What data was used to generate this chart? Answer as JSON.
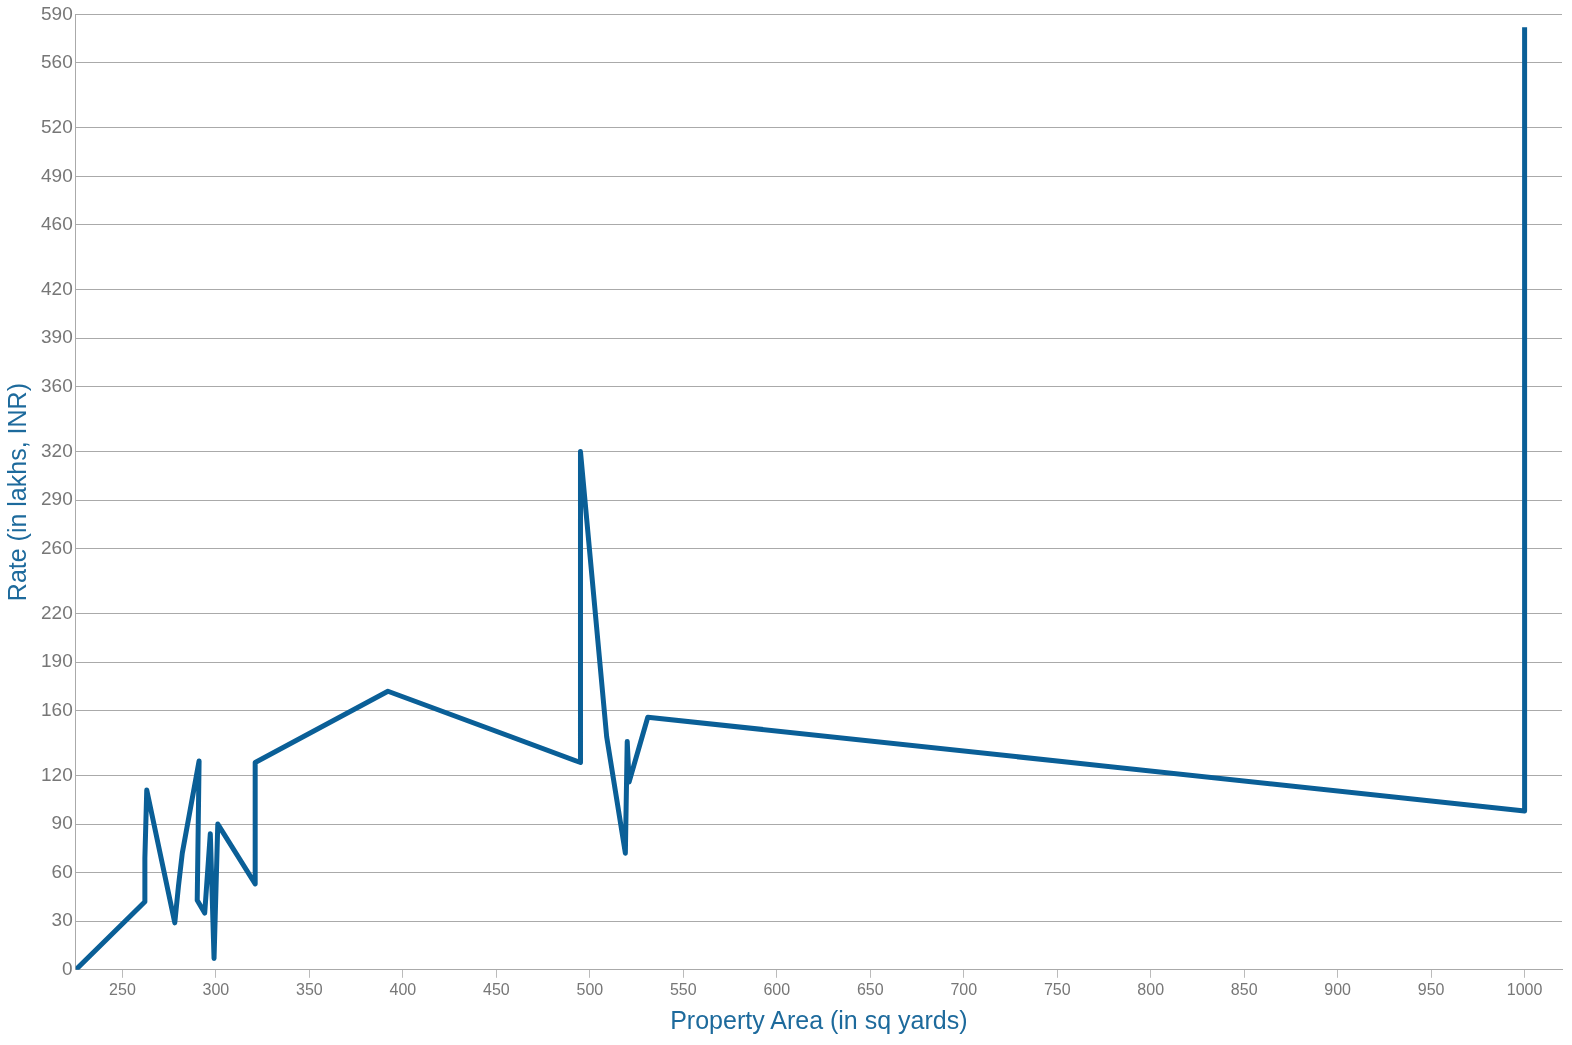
{
  "chart_data": {
    "type": "line",
    "xlabel": "Property Area (in sq yards)",
    "ylabel": "Rate (in lakhs, INR)",
    "series": [
      {
        "color": "#0a5f97",
        "x": [
          225,
          262,
          262,
          263,
          278,
          280,
          282,
          291,
          290,
          294,
          297,
          299,
          301,
          321,
          321,
          392,
          495,
          495,
          509,
          519,
          520,
          521,
          531,
          1000,
          1000
        ],
        "values": [
          0,
          42,
          69,
          111,
          29,
          52,
          72,
          129,
          43,
          35,
          84,
          7,
          90,
          53,
          128,
          172,
          128,
          320,
          144,
          72,
          141,
          116,
          156,
          98,
          582
        ]
      }
    ],
    "xlim": [
      225,
      1020
    ],
    "ylim": [
      0,
      590
    ],
    "xticks": [
      250,
      300,
      350,
      400,
      450,
      500,
      550,
      600,
      650,
      700,
      750,
      800,
      850,
      900,
      950,
      1000
    ],
    "yticks": [
      0,
      30,
      60,
      90,
      120,
      160,
      190,
      220,
      260,
      290,
      320,
      360,
      390,
      420,
      460,
      490,
      520,
      560,
      590
    ],
    "grid": "y",
    "legend": false,
    "marker": "none",
    "line_style": "solid"
  }
}
